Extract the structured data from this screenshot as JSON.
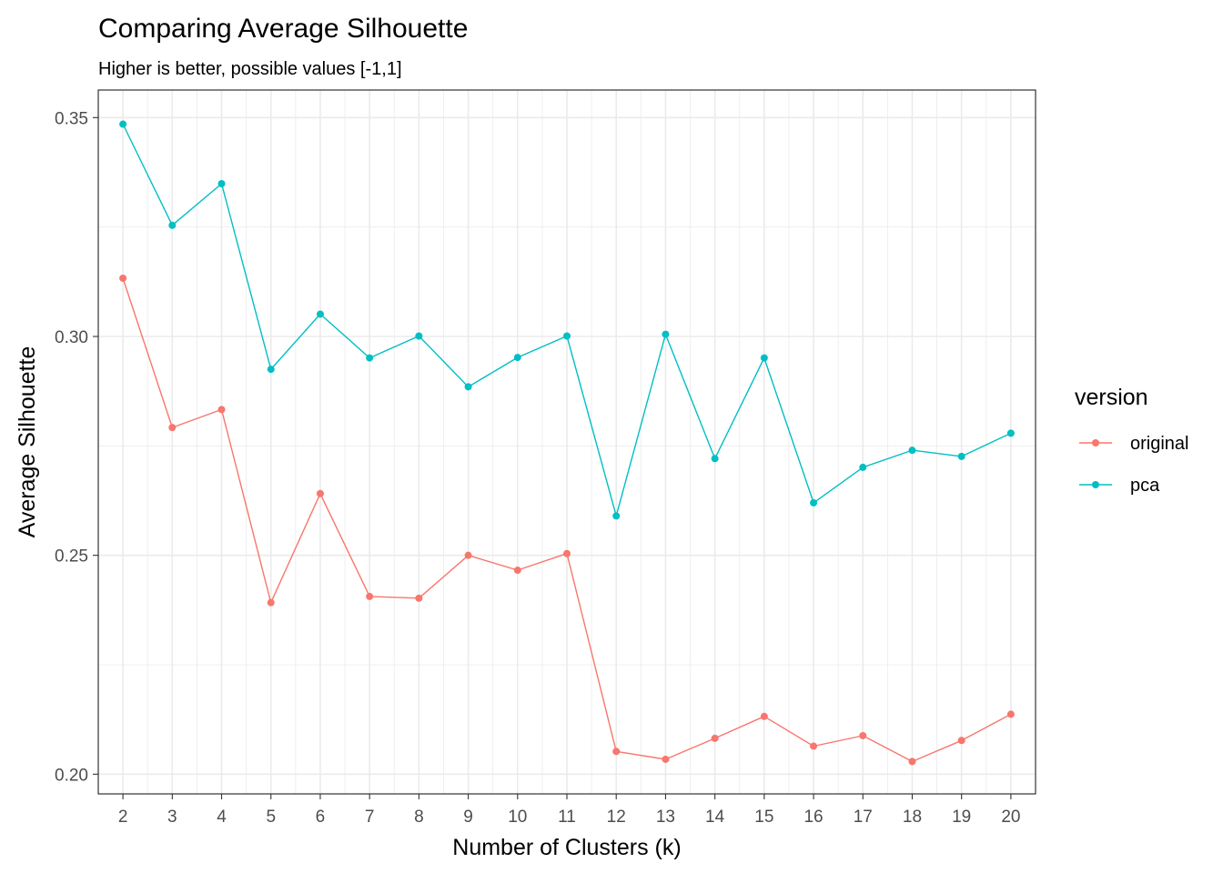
{
  "chart_data": {
    "type": "line",
    "title": "Comparing Average Silhouette",
    "subtitle": "Higher is better, possible values [-1,1]",
    "xlabel": "Number of Clusters (k)",
    "ylabel": "Average Silhouette",
    "x": [
      2,
      3,
      4,
      5,
      6,
      7,
      8,
      9,
      10,
      11,
      12,
      13,
      14,
      15,
      16,
      17,
      18,
      19,
      20
    ],
    "xlim": [
      1.5,
      20.5
    ],
    "ylim": [
      0.1955,
      0.3563
    ],
    "yticks": [
      0.2,
      0.25,
      0.3,
      0.35
    ],
    "ytick_labels": [
      "0.20",
      "0.25",
      "0.30",
      "0.35"
    ],
    "grid": true,
    "legend": {
      "title": "version",
      "position": "right"
    },
    "series": [
      {
        "name": "original",
        "color": "#F8766D",
        "values": [
          0.3133,
          0.2792,
          0.2833,
          0.2392,
          0.2641,
          0.2406,
          0.2402,
          0.25,
          0.2466,
          0.2504,
          0.2052,
          0.2034,
          0.2082,
          0.2132,
          0.2064,
          0.2088,
          0.2029,
          0.2077,
          0.2137
        ]
      },
      {
        "name": "pca",
        "color": "#00BFC4",
        "values": [
          0.3485,
          0.3254,
          0.3349,
          0.2925,
          0.3051,
          0.2951,
          0.3001,
          0.2885,
          0.2952,
          0.3001,
          0.259,
          0.3005,
          0.2721,
          0.2951,
          0.262,
          0.2701,
          0.274,
          0.2726,
          0.2779
        ]
      }
    ]
  }
}
